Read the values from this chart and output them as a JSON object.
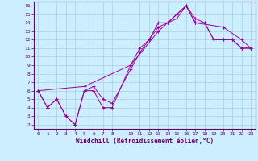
{
  "xlabel": "Windchill (Refroidissement éolien,°C)",
  "bg_color": "#cceeff",
  "line_color": "#990099",
  "grid_color": "#aaccdd",
  "xlim": [
    -0.5,
    23.5
  ],
  "ylim": [
    1.5,
    16.5
  ],
  "xticks": [
    0,
    1,
    2,
    3,
    4,
    5,
    6,
    7,
    8,
    10,
    11,
    12,
    13,
    14,
    15,
    16,
    17,
    18,
    19,
    20,
    21,
    22,
    23
  ],
  "yticks": [
    2,
    3,
    4,
    5,
    6,
    7,
    8,
    9,
    10,
    11,
    12,
    13,
    14,
    15,
    16
  ],
  "series": [
    {
      "x": [
        0,
        1,
        2,
        3,
        4,
        5,
        6,
        7,
        8,
        10,
        11,
        12,
        13,
        14,
        15,
        16,
        17,
        18,
        19,
        20,
        21,
        22,
        23
      ],
      "y": [
        6,
        4,
        5,
        3,
        2,
        6,
        6,
        4,
        4,
        9,
        11,
        12,
        14,
        14,
        15,
        16,
        14,
        14,
        12,
        12,
        12,
        11,
        11
      ]
    },
    {
      "x": [
        0,
        1,
        2,
        3,
        4,
        5,
        6,
        7,
        8,
        10,
        11,
        12,
        13,
        14,
        15,
        16,
        17,
        18,
        19,
        20,
        21,
        22,
        23
      ],
      "y": [
        6,
        4,
        5,
        3,
        2,
        6,
        6.5,
        5,
        4.5,
        8.5,
        10.5,
        12,
        13.5,
        14,
        14.5,
        16,
        14.5,
        14,
        12,
        12,
        12,
        11,
        11
      ]
    },
    {
      "x": [
        0,
        5,
        10,
        13,
        16,
        17,
        20,
        22,
        23
      ],
      "y": [
        6,
        6.5,
        9,
        13,
        16,
        14,
        13.5,
        12,
        11
      ]
    }
  ]
}
